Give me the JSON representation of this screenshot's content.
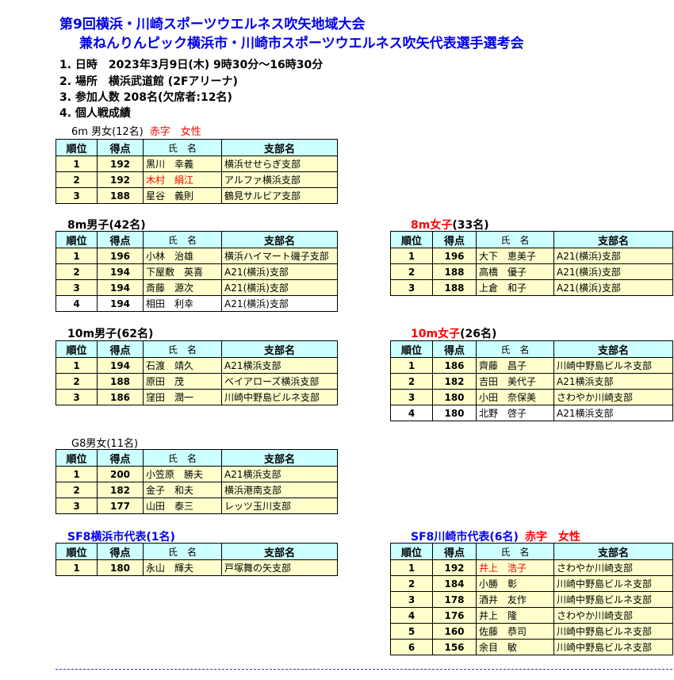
{
  "header": {
    "title1": "第9回横浜・川崎スポーツウエルネス吹矢地域大会",
    "title2": "兼ねんりんピック横浜市・川崎市スポーツウエルネス吹矢代表選手選考会",
    "info": [
      "1. 日時　2023年3月9日(木) 9時30分～16時30分",
      "2. 場所　横浜武道館 (2Fアリーナ)",
      "3. 参加人数  208名(欠席者:12名)",
      "4. 個人戦成績"
    ]
  },
  "columns": [
    "順位",
    "得点",
    "氏　名",
    "支部名"
  ],
  "colors": {
    "title": "#0000ee",
    "female": "#ff0000",
    "header_bg": "#ccffff",
    "row_bg": "#ffffcc"
  },
  "sections": [
    {
      "id": "6m",
      "caption": "6m 男女(12名)",
      "note": "赤字　女性",
      "rows": [
        [
          "1",
          "192",
          "黒川　幸義",
          "横浜せせらぎ支部",
          false,
          true
        ],
        [
          "2",
          "192",
          "木村　絹江",
          "アルファ横浜支部",
          true,
          true
        ],
        [
          "3",
          "188",
          "星谷　義則",
          "鶴見サルビア支部",
          false,
          true
        ]
      ]
    },
    {
      "id": "8m-men",
      "caption": "8m男子(42名)",
      "rows": [
        [
          "1",
          "196",
          "小林　治雄",
          "横浜ハイマート磯子支部",
          false,
          true
        ],
        [
          "2",
          "194",
          "下屋敷　英喜",
          "A21(横浜)支部",
          false,
          true
        ],
        [
          "3",
          "194",
          "斎藤　源次",
          "A21(横浜)支部",
          false,
          true
        ],
        [
          "4",
          "194",
          "相田　利幸",
          "A21(横浜)支部",
          false,
          false
        ]
      ]
    },
    {
      "id": "8m-women",
      "caption": "8m女子",
      "caption_suffix": "(33名)",
      "rows": [
        [
          "1",
          "196",
          "大下　恵美子",
          "A21(横浜)支部",
          false,
          true
        ],
        [
          "2",
          "188",
          "高橋　優子",
          "A21(横浜)支部",
          false,
          true
        ],
        [
          "3",
          "188",
          "上倉　和子",
          "A21(横浜)支部",
          false,
          true
        ]
      ]
    },
    {
      "id": "10m-men",
      "caption": "10m男子(62名)",
      "rows": [
        [
          "1",
          "194",
          "石渡　靖久",
          "A21横浜支部",
          false,
          true
        ],
        [
          "2",
          "188",
          "原田　茂",
          "ベイアローズ横浜支部",
          false,
          true
        ],
        [
          "3",
          "186",
          "窪田　潤一",
          "川崎中野島ビルネ支部",
          false,
          true
        ]
      ]
    },
    {
      "id": "10m-women",
      "caption": "10m女子",
      "caption_suffix": "(26名)",
      "rows": [
        [
          "1",
          "186",
          "齊藤　昌子",
          "川崎中野島ビルネ支部",
          false,
          true
        ],
        [
          "2",
          "182",
          "吉田　美代子",
          "A21横浜支部",
          false,
          true
        ],
        [
          "3",
          "180",
          "小田　奈保美",
          "さわやか川崎支部",
          false,
          true
        ],
        [
          "4",
          "180",
          "北野　啓子",
          "A21横浜支部",
          false,
          false
        ]
      ]
    },
    {
      "id": "g8",
      "caption": "G8男女(11名)",
      "rows": [
        [
          "1",
          "200",
          "小笠原　勝夫",
          "A21横浜支部",
          false,
          true
        ],
        [
          "2",
          "182",
          "金子　和夫",
          "横浜港南支部",
          false,
          true
        ],
        [
          "3",
          "177",
          "山田　泰三",
          "レッツ玉川支部",
          false,
          true
        ]
      ]
    },
    {
      "id": "sf8-yokohama",
      "caption": "SF8横浜市代表(1名)",
      "rows": [
        [
          "1",
          "180",
          "永山　輝夫",
          "戸塚舞の矢支部",
          false,
          true
        ]
      ]
    },
    {
      "id": "sf8-kawasaki",
      "caption": "SF8川崎市代表(6名)",
      "note": "赤字　女性",
      "rows": [
        [
          "1",
          "192",
          "井上　浩子",
          "さわやか川崎支部",
          true,
          true
        ],
        [
          "2",
          "184",
          "小勝　彰",
          "川崎中野島ビルネ支部",
          false,
          true
        ],
        [
          "3",
          "178",
          "酒井　友作",
          "川崎中野島ビルネ支部",
          false,
          true
        ],
        [
          "4",
          "176",
          "井上　隆",
          "さわやか川崎支部",
          false,
          true
        ],
        [
          "5",
          "160",
          "佐藤　恭司",
          "川崎中野島ビルネ支部",
          false,
          true
        ],
        [
          "6",
          "156",
          "余目　敏",
          "川崎中野島ビルネ支部",
          false,
          true
        ]
      ]
    }
  ]
}
